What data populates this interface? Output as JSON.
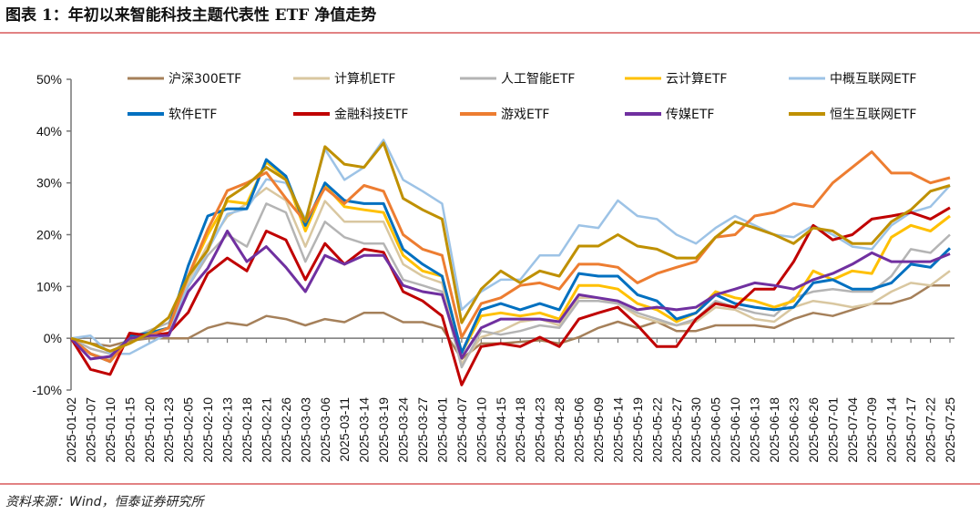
{
  "title": "图表 1：年初以来智能科技主题代表性 ETF 净值走势",
  "source": "资料来源：Wind，恒泰证券研究所",
  "chart_data": {
    "type": "line",
    "title": "",
    "xlabel": "",
    "ylabel": "",
    "ylim": [
      -10,
      50
    ],
    "yticks": [
      "50%",
      "40%",
      "30%",
      "20%",
      "10%",
      "0%",
      "-10%"
    ],
    "ytick_values": [
      50,
      40,
      30,
      20,
      10,
      0,
      -10
    ],
    "grid": false,
    "legend": "top",
    "x": [
      "2025-01-02",
      "2025-01-07",
      "2025-01-10",
      "2025-01-15",
      "2025-01-20",
      "2025-01-23",
      "2025-02-05",
      "2025-02-10",
      "2025-02-13",
      "2025-02-18",
      "2025-02-21",
      "2025-02-26",
      "2025-03-03",
      "2025-03-06",
      "2025-03-11",
      "2025-03-14",
      "2025-03-19",
      "2025-03-24",
      "2025-03-27",
      "2025-04-01",
      "2025-04-07",
      "2025-04-10",
      "2025-04-15",
      "2025-04-18",
      "2025-04-23",
      "2025-04-28",
      "2025-05-06",
      "2025-05-09",
      "2025-05-14",
      "2025-05-19",
      "2025-05-22",
      "2025-05-27",
      "2025-05-30",
      "2025-06-05",
      "2025-06-10",
      "2025-06-13",
      "2025-06-18",
      "2025-06-23",
      "2025-06-26",
      "2025-07-01",
      "2025-07-04",
      "2025-07-09",
      "2025-07-14",
      "2025-07-17",
      "2025-07-22",
      "2025-07-25"
    ],
    "series": [
      {
        "name": "沪深300ETF",
        "color": "#A5805A",
        "values": [
          0,
          -1,
          -1.5,
          -0.5,
          0,
          0,
          0,
          2,
          3,
          2.5,
          4.3,
          3.7,
          2.5,
          3.7,
          3.1,
          4.9,
          4.9,
          3.1,
          3.1,
          2,
          -4,
          -1,
          -1,
          -0.7,
          -0.4,
          -1,
          0.2,
          2,
          3.2,
          2,
          3.2,
          1.4,
          1.4,
          2.5,
          2.5,
          2.5,
          2,
          3.7,
          4.9,
          4.3,
          5.5,
          6.7,
          6.7,
          7.8,
          10.2,
          10.2
        ]
      },
      {
        "name": "计算机ETF",
        "color": "#D9C7A0",
        "values": [
          0,
          -3,
          -4,
          0,
          1,
          2,
          11,
          18,
          23.5,
          26,
          29,
          26.6,
          17.7,
          26.5,
          22.5,
          22.5,
          22.5,
          14.3,
          12,
          10.7,
          -5,
          0.2,
          1.4,
          3.2,
          3.7,
          2.5,
          7.8,
          7.8,
          6.7,
          4.3,
          3.2,
          2.5,
          3.2,
          6,
          5.5,
          3.7,
          3.2,
          6,
          7.2,
          6.7,
          6,
          6.7,
          9,
          10.7,
          10.2,
          13
        ]
      },
      {
        "name": "人工智能ETF",
        "color": "#B4B4B4",
        "values": [
          0,
          -2,
          -3,
          0,
          1.5,
          3,
          10,
          16,
          20,
          17.7,
          26,
          24.3,
          14.8,
          22.5,
          19.5,
          18.3,
          18.3,
          11.3,
          10.2,
          9,
          -5.6,
          1.4,
          0.7,
          1.4,
          2.5,
          2,
          7.2,
          7.2,
          6.7,
          4.9,
          3.7,
          2.5,
          3.7,
          7.2,
          6,
          4.9,
          4.3,
          7.8,
          9,
          9.5,
          9,
          9,
          12,
          17.2,
          16.5,
          20
        ]
      },
      {
        "name": "云计算ETF",
        "color": "#FFC000",
        "values": [
          0,
          -3,
          -4.5,
          0,
          1,
          2,
          12,
          20,
          26.5,
          26,
          34,
          31,
          20.7,
          29.5,
          25.4,
          24.8,
          24.3,
          16,
          13,
          12,
          -2.8,
          4.3,
          4.9,
          4.3,
          4.9,
          3.7,
          10.2,
          10.2,
          9.5,
          6.7,
          5.5,
          3.2,
          4.9,
          9,
          7.8,
          7.2,
          6,
          7.2,
          13,
          11.3,
          13,
          12.5,
          19.5,
          21.8,
          20.7,
          23.6
        ]
      },
      {
        "name": "中概互联网ETF",
        "color": "#9DC3E6",
        "values": [
          0,
          0.5,
          -3,
          -3,
          -1,
          1,
          10,
          17,
          24,
          25,
          30.7,
          30,
          23,
          36.5,
          30.6,
          33,
          38.3,
          30.6,
          28.4,
          26,
          5.5,
          9,
          11.3,
          11.3,
          16,
          16,
          21.8,
          21.3,
          26.6,
          23.6,
          23,
          20,
          18.3,
          21.3,
          23.6,
          21.8,
          20,
          19.5,
          21.8,
          20,
          17.7,
          17.2,
          21.8,
          24.3,
          25.4,
          29.5
        ]
      },
      {
        "name": "软件ETF",
        "color": "#0070C0",
        "values": [
          0,
          -3,
          -4.5,
          0.5,
          1,
          2,
          14,
          23.6,
          25,
          25,
          34.5,
          31.3,
          21.8,
          30,
          26.6,
          26,
          26,
          17.2,
          14.3,
          12,
          -2.8,
          5.5,
          6.7,
          5.5,
          6.7,
          5.5,
          12.5,
          12,
          12,
          8.4,
          7.2,
          3.7,
          4.9,
          8.4,
          6.7,
          6,
          5.5,
          6,
          10.7,
          11.3,
          9.5,
          9.5,
          10.7,
          14.3,
          13.7,
          17.4
        ]
      },
      {
        "name": "金融科技ETF",
        "color": "#C00000",
        "values": [
          0,
          -6,
          -7,
          1,
          0.5,
          1,
          5,
          12.5,
          15.5,
          13,
          20.7,
          19,
          11.3,
          18.3,
          14.3,
          17.2,
          16.6,
          9,
          7.2,
          4.3,
          -9,
          -1.6,
          -1,
          -1.6,
          0.2,
          -1.6,
          3.7,
          4.9,
          6,
          2.5,
          -1.6,
          -1.6,
          3.7,
          6.7,
          6,
          9.5,
          9.5,
          14.8,
          21.8,
          19,
          20,
          23,
          23.6,
          24.3,
          23,
          25.2
        ]
      },
      {
        "name": "游戏ETF",
        "color": "#ED7D31",
        "values": [
          0,
          -3,
          -4.5,
          0,
          0.5,
          2,
          12,
          21,
          28.5,
          30,
          32,
          27,
          22.5,
          29,
          26,
          29.5,
          28.4,
          20,
          17.2,
          16,
          0.2,
          6.7,
          7.8,
          10.2,
          10.7,
          9.5,
          14.3,
          14.3,
          13.7,
          10.7,
          12.5,
          13.7,
          14.8,
          19.5,
          20,
          23.6,
          24.3,
          26,
          25.4,
          30,
          33,
          36,
          31.9,
          31.9,
          30,
          31
        ]
      },
      {
        "name": "传媒ETF",
        "color": "#7030A0",
        "values": [
          0,
          -4,
          -3.5,
          0,
          0.5,
          0.5,
          9,
          13.5,
          20.7,
          14.8,
          17.7,
          13.7,
          9,
          16,
          14.3,
          16,
          16,
          10.2,
          9,
          8.4,
          -3.8,
          2,
          3.7,
          3.7,
          3.7,
          3.2,
          8.4,
          7.8,
          7.2,
          5.5,
          6,
          5.5,
          6,
          8.4,
          9.5,
          10.7,
          10.2,
          9.5,
          11.3,
          12.5,
          14.3,
          16.5,
          14.8,
          14.8,
          14.8,
          16.3
        ]
      },
      {
        "name": "恒生互联网ETF",
        "color": "#BF9000",
        "values": [
          0,
          -1,
          -2.5,
          -1,
          1,
          4,
          12,
          17,
          27,
          29.5,
          33,
          30.6,
          22.5,
          37,
          33.6,
          33,
          37.7,
          27,
          24.8,
          23,
          3,
          9.5,
          13,
          10.7,
          13,
          12,
          17.8,
          17.8,
          20,
          17.8,
          17.2,
          15.5,
          15.5,
          19.5,
          22.5,
          21.3,
          20,
          18.3,
          21.3,
          20.7,
          18.3,
          18.3,
          22.5,
          24.8,
          28.4,
          29.5
        ]
      }
    ]
  }
}
